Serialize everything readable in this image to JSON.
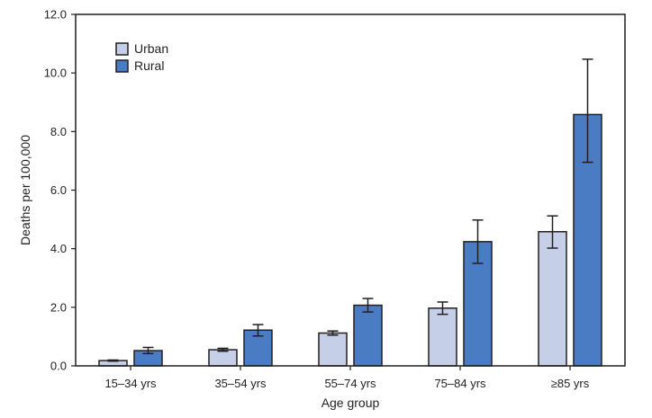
{
  "chart_data": {
    "type": "bar",
    "title": "",
    "xlabel": "Age group",
    "ylabel": "Deaths per 100,000",
    "ylim": [
      0,
      12
    ],
    "yticks": [
      0,
      2,
      4,
      6,
      8,
      10,
      12
    ],
    "ytick_labels": [
      "0.0",
      "2.0",
      "4.0",
      "6.0",
      "8.0",
      "10.0",
      "12.0"
    ],
    "grid": false,
    "legend_position": "top-left",
    "categories": [
      "15–34 yrs",
      "35–54 yrs",
      "55–74 yrs",
      "75–84 yrs",
      "≥85 yrs"
    ],
    "series": [
      {
        "name": "Urban",
        "color": "#c5d0e8",
        "values": [
          0.18,
          0.55,
          1.12,
          1.97,
          4.58
        ],
        "error_low": [
          0.16,
          0.5,
          1.05,
          1.76,
          4.02
        ],
        "error_high": [
          0.2,
          0.6,
          1.19,
          2.18,
          5.12
        ]
      },
      {
        "name": "Rural",
        "color": "#4a7cc4",
        "values": [
          0.52,
          1.22,
          2.07,
          4.24,
          8.58
        ],
        "error_low": [
          0.42,
          1.02,
          1.84,
          3.5,
          6.95
        ],
        "error_high": [
          0.63,
          1.41,
          2.3,
          4.98,
          10.47
        ]
      }
    ],
    "colors": {
      "axis": "#231f20",
      "bar_stroke": "#231f20"
    }
  }
}
